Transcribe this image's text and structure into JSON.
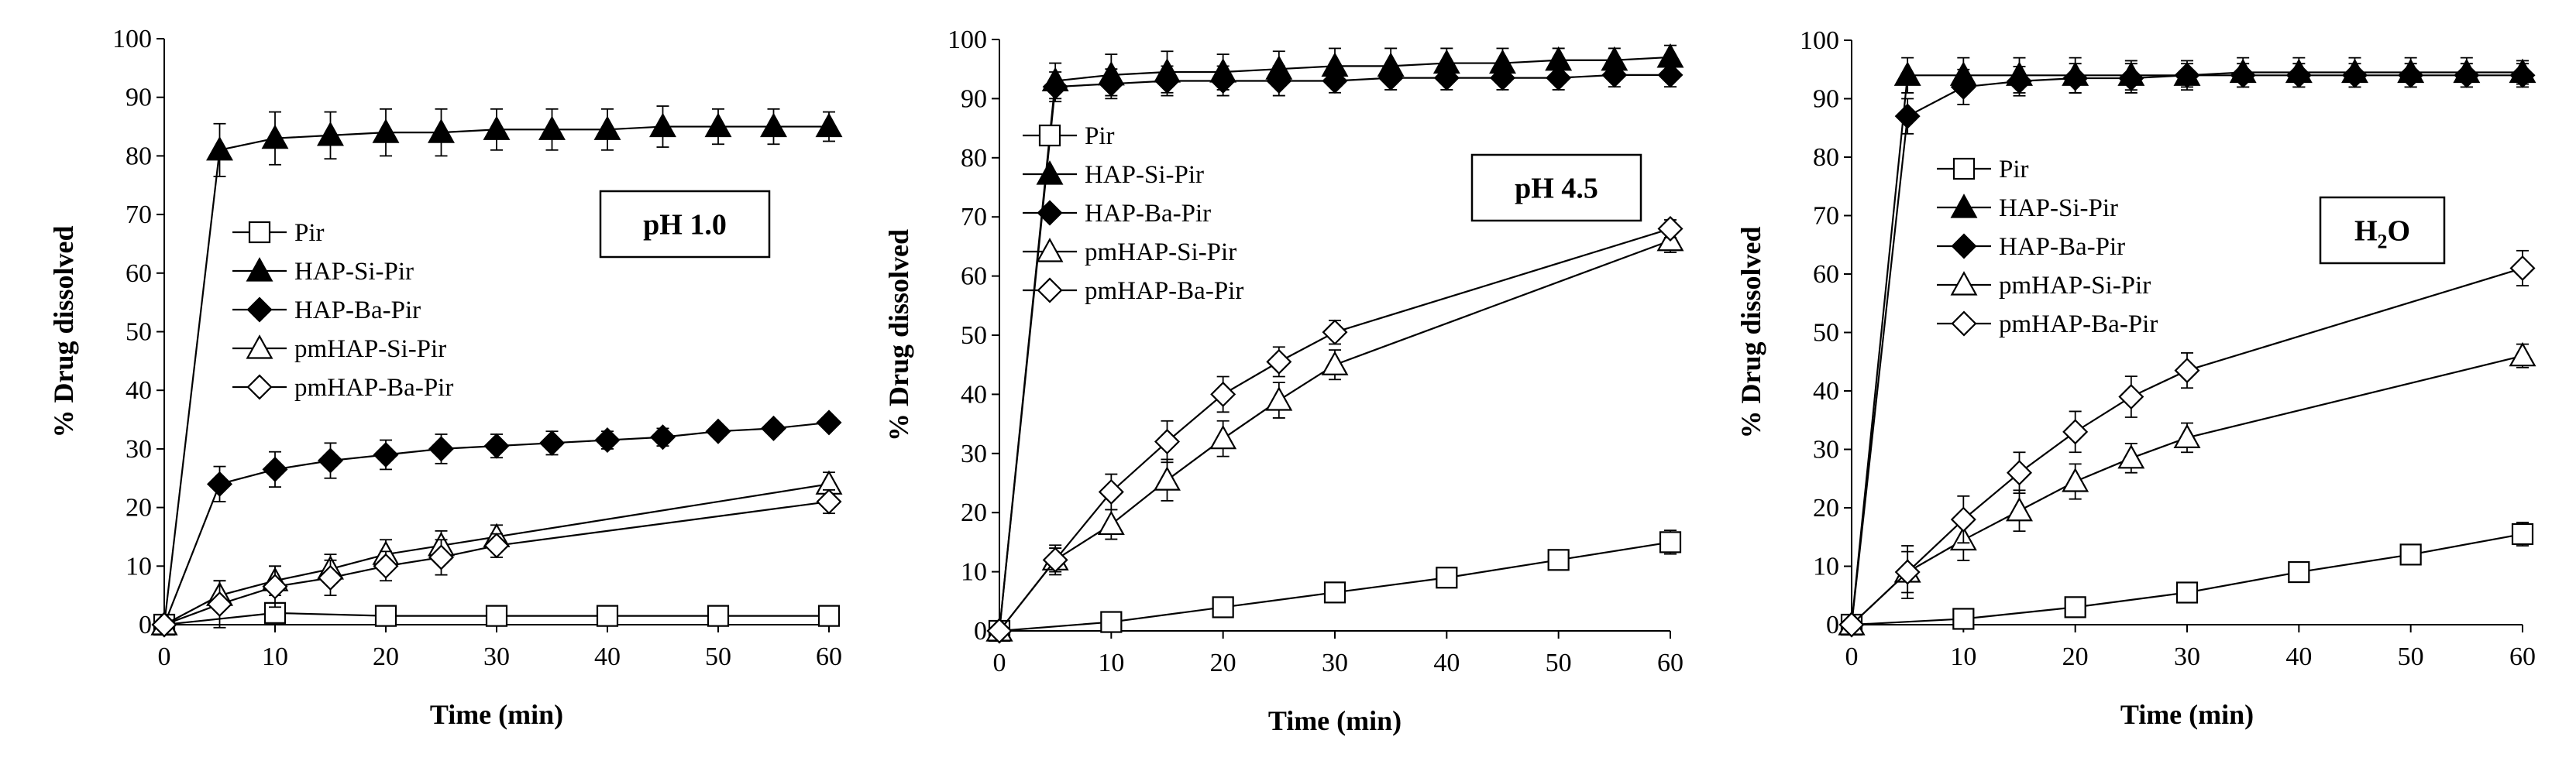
{
  "colors": {
    "line": "#000000",
    "background": "#ffffff"
  },
  "chart_data": [
    {
      "type": "line",
      "condition": "pH 1.0",
      "xlabel": "Time (min)",
      "ylabel": "% Drug dissolved",
      "xlim": [
        0,
        60
      ],
      "ylim": [
        0,
        100
      ],
      "xticks": [
        0,
        10,
        20,
        30,
        40,
        50,
        60
      ],
      "yticks": [
        0,
        10,
        20,
        30,
        40,
        50,
        60,
        70,
        80,
        90,
        100
      ],
      "series": [
        {
          "name": "Pir",
          "marker": "square-open",
          "x": [
            0,
            10,
            20,
            30,
            40,
            50,
            60
          ],
          "values": [
            0,
            2,
            1.5,
            1.5,
            1.5,
            1.5,
            1.5
          ],
          "err": [
            0.5,
            0.5,
            0.5,
            0.5,
            0.5,
            0.5,
            0.5
          ]
        },
        {
          "name": "HAP-Si-Pir",
          "marker": "triangle-filled",
          "x": [
            0,
            5,
            10,
            15,
            20,
            25,
            30,
            35,
            40,
            45,
            50,
            55,
            60
          ],
          "values": [
            0,
            81,
            83,
            83.5,
            84,
            84,
            84.5,
            84.5,
            84.5,
            85,
            85,
            85,
            85
          ],
          "err": [
            0,
            4.5,
            4.5,
            4,
            4,
            4,
            3.5,
            3.5,
            3.5,
            3.5,
            3,
            3,
            2.5
          ]
        },
        {
          "name": "HAP-Ba-Pir",
          "marker": "diamond-filled",
          "x": [
            0,
            5,
            10,
            15,
            20,
            25,
            30,
            35,
            40,
            45,
            50,
            55,
            60
          ],
          "values": [
            0,
            24,
            26.5,
            28,
            29,
            30,
            30.5,
            31,
            31.5,
            32,
            33,
            33.5,
            34.5
          ],
          "err": [
            0,
            3,
            3,
            3,
            2.5,
            2.5,
            2,
            2,
            1.5,
            1.5,
            1,
            1,
            0.5
          ]
        },
        {
          "name": "pmHAP-Si-Pir",
          "marker": "triangle-open",
          "x": [
            0,
            5,
            10,
            15,
            20,
            25,
            30,
            60
          ],
          "values": [
            0,
            5,
            7.5,
            9.5,
            12,
            13.5,
            15,
            24
          ],
          "err": [
            0,
            2.5,
            2.5,
            2.5,
            2.5,
            2.5,
            2,
            2
          ]
        },
        {
          "name": "pmHAP-Ba-Pir",
          "marker": "diamond-open",
          "x": [
            0,
            5,
            10,
            15,
            20,
            25,
            30,
            60
          ],
          "values": [
            0,
            3.5,
            6.5,
            8,
            10,
            11.5,
            13.5,
            21
          ],
          "err": [
            0,
            4,
            3.5,
            3,
            2.5,
            3,
            2,
            2
          ]
        }
      ]
    },
    {
      "type": "line",
      "condition": "pH 4.5",
      "xlabel": "Time (min)",
      "ylabel": "% Drug dissolved",
      "xlim": [
        0,
        60
      ],
      "ylim": [
        0,
        100
      ],
      "xticks": [
        0,
        10,
        20,
        30,
        40,
        50,
        60
      ],
      "yticks": [
        0,
        10,
        20,
        30,
        40,
        50,
        60,
        70,
        80,
        90,
        100
      ],
      "series": [
        {
          "name": "Pir",
          "marker": "square-open",
          "x": [
            0,
            10,
            20,
            30,
            40,
            50,
            60
          ],
          "values": [
            0,
            1.5,
            4,
            6.5,
            9,
            12,
            15
          ],
          "err": [
            0.5,
            0.5,
            0.5,
            0.5,
            0.5,
            1,
            2
          ]
        },
        {
          "name": "HAP-Si-Pir",
          "marker": "triangle-filled",
          "x": [
            0,
            5,
            10,
            15,
            20,
            25,
            30,
            35,
            40,
            45,
            50,
            55,
            60
          ],
          "values": [
            0,
            93,
            94,
            94.5,
            94.5,
            95,
            95.5,
            95.5,
            96,
            96,
            96.5,
            96.5,
            97
          ],
          "err": [
            0,
            3,
            3.5,
            3.5,
            3,
            3,
            3,
            3,
            2.5,
            2.5,
            2,
            2,
            2
          ]
        },
        {
          "name": "HAP-Ba-Pir",
          "marker": "diamond-filled",
          "x": [
            0,
            5,
            10,
            15,
            20,
            25,
            30,
            35,
            40,
            45,
            50,
            55,
            60
          ],
          "values": [
            0,
            92,
            92.5,
            93,
            93,
            93,
            93,
            93.5,
            93.5,
            93.5,
            93.5,
            94,
            94
          ],
          "err": [
            0,
            2.5,
            2.5,
            2.5,
            2.5,
            2.5,
            2,
            2,
            2,
            2,
            2,
            2,
            2
          ]
        },
        {
          "name": "pmHAP-Si-Pir",
          "marker": "triangle-open",
          "x": [
            0,
            5,
            10,
            15,
            20,
            25,
            30,
            60
          ],
          "values": [
            0,
            12,
            18,
            25.5,
            32.5,
            39,
            45,
            66
          ],
          "err": [
            0,
            2,
            2.5,
            3.5,
            3,
            3,
            2.5,
            2
          ]
        },
        {
          "name": "pmHAP-Ba-Pir",
          "marker": "diamond-open",
          "x": [
            0,
            5,
            10,
            15,
            20,
            25,
            30,
            60
          ],
          "values": [
            0,
            12,
            23.5,
            32,
            40,
            45.5,
            50.5,
            68
          ],
          "err": [
            0,
            2.5,
            3,
            3.5,
            3,
            2.5,
            2,
            1.5
          ]
        }
      ]
    },
    {
      "type": "line",
      "condition": "H2O",
      "condition_main": "H",
      "condition_sub": "2",
      "condition_tail": "O",
      "xlabel": "Time (min)",
      "ylabel": "% Drug dissolved",
      "xlim": [
        0,
        60
      ],
      "ylim": [
        0,
        100
      ],
      "xticks": [
        0,
        10,
        20,
        30,
        40,
        50,
        60
      ],
      "yticks": [
        0,
        10,
        20,
        30,
        40,
        50,
        60,
        70,
        80,
        90,
        100
      ],
      "series": [
        {
          "name": "Pir",
          "marker": "square-open",
          "x": [
            0,
            10,
            20,
            30,
            40,
            50,
            60
          ],
          "values": [
            0,
            1,
            3,
            5.5,
            9,
            12,
            15.5
          ],
          "err": [
            0.5,
            0.5,
            0.5,
            0.5,
            1,
            1.5,
            2
          ]
        },
        {
          "name": "HAP-Si-Pir",
          "marker": "triangle-filled",
          "x": [
            0,
            5,
            10,
            15,
            20,
            25,
            30,
            35,
            40,
            45,
            50,
            55,
            60
          ],
          "values": [
            0,
            94,
            94,
            94,
            94,
            94,
            94,
            94.5,
            94.5,
            94.5,
            94.5,
            94.5,
            94.5
          ],
          "err": [
            0,
            3,
            3,
            3,
            3,
            2.5,
            2.5,
            2.5,
            2.5,
            2.5,
            2.5,
            2.5,
            2
          ]
        },
        {
          "name": "HAP-Ba-Pir",
          "marker": "diamond-filled",
          "x": [
            0,
            5,
            10,
            15,
            20,
            25,
            30,
            35,
            40,
            45,
            50,
            55,
            60
          ],
          "values": [
            0,
            87,
            92,
            93,
            93.5,
            93.5,
            94,
            94,
            94,
            94,
            94,
            94,
            94
          ],
          "err": [
            0,
            3,
            3,
            2.5,
            2.5,
            2.5,
            2,
            2,
            2,
            2,
            2,
            2,
            2
          ]
        },
        {
          "name": "pmHAP-Si-Pir",
          "marker": "triangle-open",
          "x": [
            0,
            5,
            10,
            15,
            20,
            25,
            30,
            60
          ],
          "values": [
            0,
            9,
            14.5,
            19.5,
            24.5,
            28.5,
            32,
            46
          ],
          "err": [
            0,
            3.5,
            3.5,
            3.5,
            3,
            2.5,
            2.5,
            2
          ]
        },
        {
          "name": "pmHAP-Ba-Pir",
          "marker": "diamond-open",
          "x": [
            0,
            5,
            10,
            15,
            20,
            25,
            30,
            60
          ],
          "values": [
            0,
            9,
            18,
            26,
            33,
            39,
            43.5,
            61
          ],
          "err": [
            0,
            4.5,
            4,
            3.5,
            3.5,
            3.5,
            3,
            3
          ]
        }
      ]
    }
  ]
}
